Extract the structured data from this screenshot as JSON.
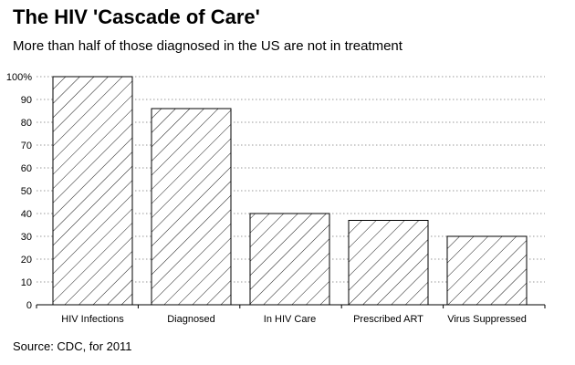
{
  "chart_data": {
    "type": "bar",
    "title": "The HIV 'Cascade of Care'",
    "subtitle": "More than half of those diagnosed in the US are not in treatment",
    "source": "Source: CDC, for 2011",
    "categories": [
      "HIV Infections",
      "Diagnosed",
      "In HIV Care",
      "Prescribed ART",
      "Virus Suppressed"
    ],
    "values": [
      100,
      86,
      40,
      37,
      30
    ],
    "y_ticks": [
      0,
      10,
      20,
      30,
      40,
      50,
      60,
      70,
      80,
      90,
      100
    ],
    "y_tick_labels": [
      "0",
      "10",
      "20",
      "30",
      "40",
      "50",
      "60",
      "70",
      "80",
      "90",
      "100%"
    ],
    "xlabel": "",
    "ylabel": "",
    "ylim": [
      0,
      100
    ],
    "grid": "horizontal dotted",
    "bar_fill": "diagonal hatch",
    "colors": {
      "bar_stroke": "#000000",
      "hatch": "#000000",
      "grid": "#999999",
      "background": "#ffffff"
    }
  }
}
